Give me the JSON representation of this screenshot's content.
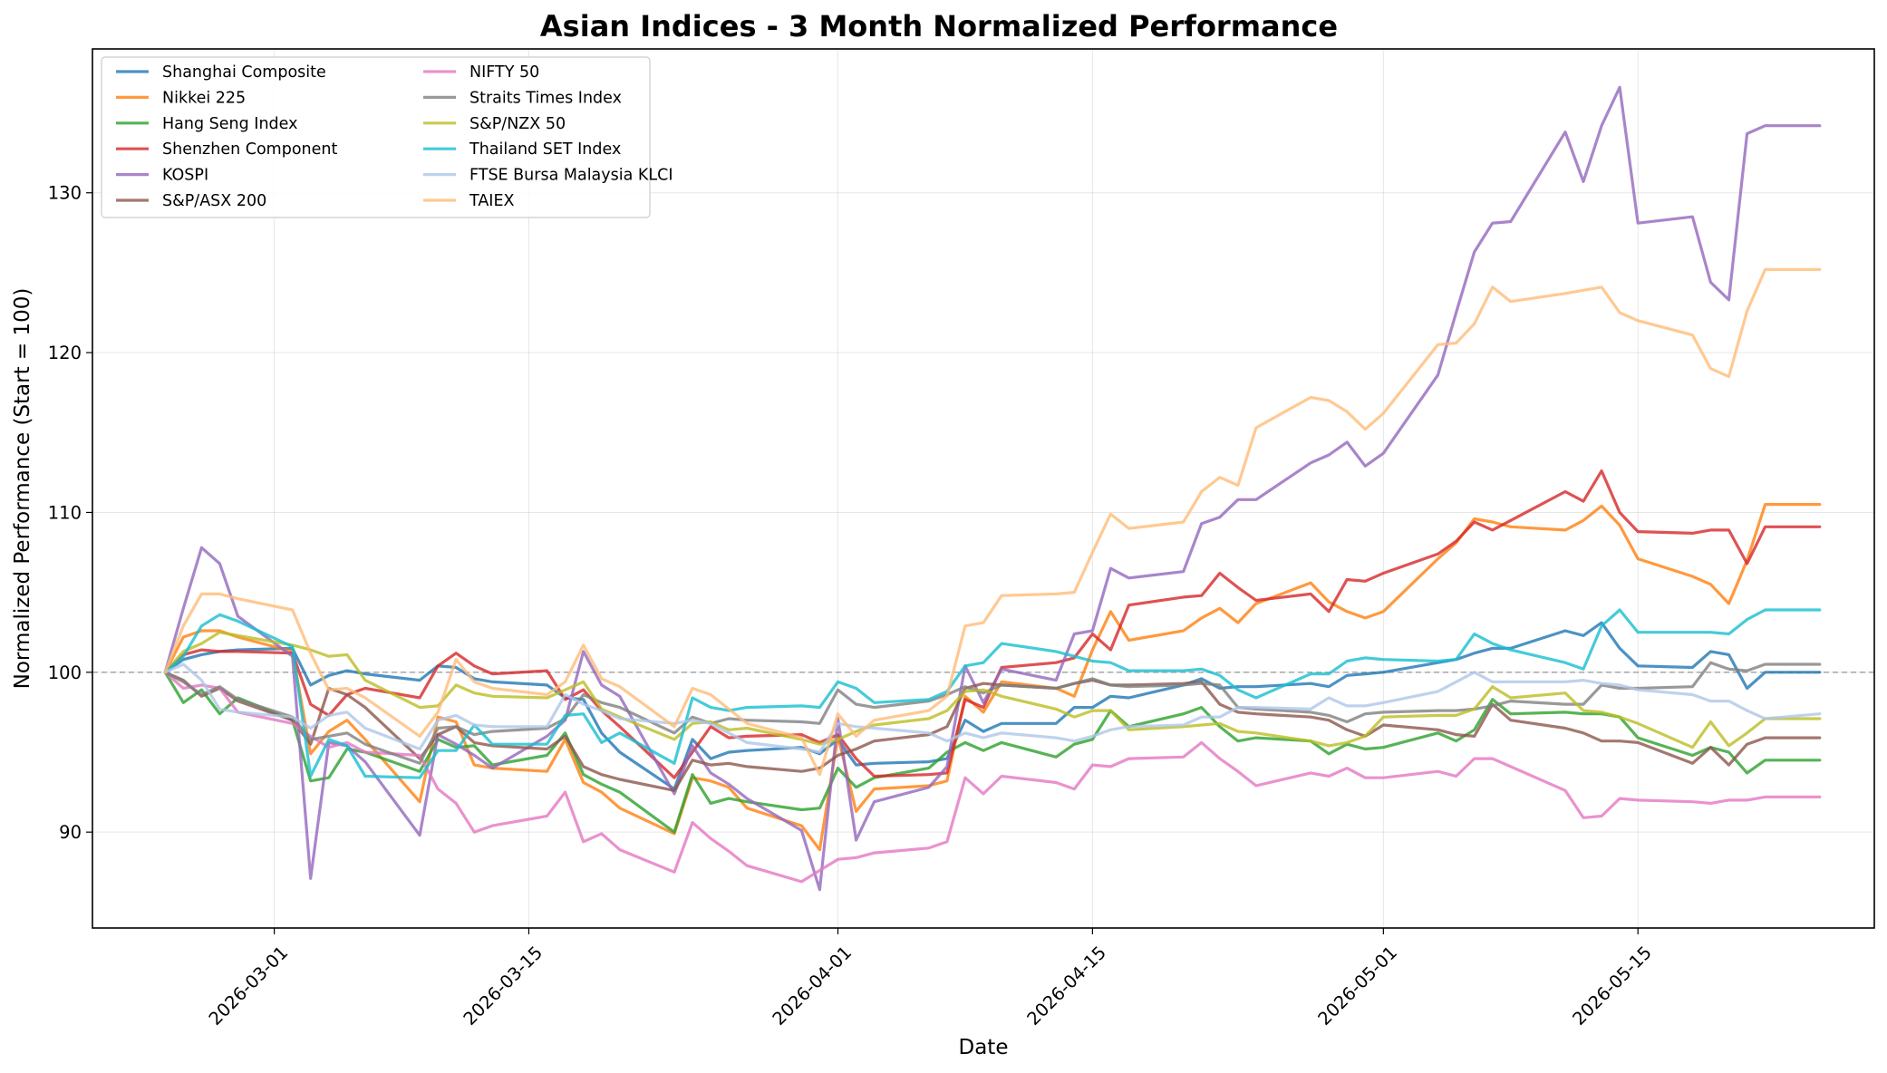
{
  "chart_data": {
    "type": "line",
    "title": "Asian Indices - 3 Month Normalized Performance",
    "xlabel": "Date",
    "ylabel": "Normalized Performance (Start = 100)",
    "xlim": [
      "2026-02-19",
      "2026-05-28"
    ],
    "ylim": [
      84,
      139
    ],
    "xticks": [
      "2026-03-01",
      "2026-03-15",
      "2026-04-01",
      "2026-04-15",
      "2026-05-01",
      "2026-05-15"
    ],
    "yticks": [
      90,
      100,
      110,
      120,
      130
    ],
    "baseline": 100,
    "grid": true,
    "legend_position": "upper-left",
    "x": [
      "2026-02-23",
      "2026-02-24",
      "2026-02-25",
      "2026-02-26",
      "2026-02-27",
      "2026-03-02",
      "2026-03-03",
      "2026-03-04",
      "2026-03-05",
      "2026-03-06",
      "2026-03-09",
      "2026-03-10",
      "2026-03-11",
      "2026-03-12",
      "2026-03-13",
      "2026-03-16",
      "2026-03-17",
      "2026-03-18",
      "2026-03-19",
      "2026-03-20",
      "2026-03-23",
      "2026-03-24",
      "2026-03-25",
      "2026-03-26",
      "2026-03-27",
      "2026-03-30",
      "2026-03-31",
      "2026-04-01",
      "2026-04-02",
      "2026-04-03",
      "2026-04-06",
      "2026-04-07",
      "2026-04-08",
      "2026-04-09",
      "2026-04-10",
      "2026-04-13",
      "2026-04-14",
      "2026-04-15",
      "2026-04-16",
      "2026-04-17",
      "2026-04-20",
      "2026-04-21",
      "2026-04-22",
      "2026-04-23",
      "2026-04-24",
      "2026-04-27",
      "2026-04-28",
      "2026-04-29",
      "2026-04-30",
      "2026-05-01",
      "2026-05-04",
      "2026-05-05",
      "2026-05-06",
      "2026-05-07",
      "2026-05-08",
      "2026-05-11",
      "2026-05-12",
      "2026-05-13",
      "2026-05-14",
      "2026-05-15",
      "2026-05-18",
      "2026-05-19",
      "2026-05-20",
      "2026-05-21",
      "2026-05-22",
      "2026-05-25"
    ],
    "series": [
      {
        "name": "Shanghai Composite",
        "color": "#1f77b4",
        "values": [
          100,
          100.8,
          101.1,
          101.3,
          101.4,
          101.5,
          99.2,
          99.8,
          100.1,
          99.9,
          99.5,
          100.4,
          100.3,
          99.6,
          99.4,
          99.2,
          98.4,
          98.3,
          96.2,
          95.0,
          92.7,
          95.8,
          94.6,
          95.0,
          95.1,
          95.3,
          94.9,
          95.8,
          94.2,
          94.3,
          94.4,
          94.6,
          97.0,
          96.3,
          96.8,
          96.8,
          97.8,
          97.8,
          98.5,
          98.4,
          99.2,
          99.6,
          99.0,
          99.1,
          99.1,
          99.3,
          99.1,
          99.8,
          99.9,
          100.0,
          100.6,
          100.8,
          101.2,
          101.5,
          101.5,
          102.6,
          102.3,
          103.1,
          101.5,
          100.4,
          100.3,
          101.3,
          101.1,
          99.0,
          100.0,
          100.0
        ]
      },
      {
        "name": "Nikkei 225",
        "color": "#ff7f0e",
        "values": [
          100,
          102.2,
          102.6,
          102.6,
          102.2,
          101.3,
          94.9,
          96.3,
          97.0,
          95.8,
          91.9,
          97.2,
          96.9,
          94.2,
          94.0,
          93.8,
          95.8,
          93.1,
          92.5,
          91.5,
          89.9,
          93.4,
          93.2,
          92.8,
          91.5,
          90.4,
          88.9,
          96.0,
          91.3,
          92.7,
          92.9,
          93.2,
          98.5,
          97.5,
          99.4,
          99.0,
          98.5,
          101.4,
          103.8,
          102.0,
          102.6,
          103.4,
          104.0,
          103.1,
          104.3,
          105.6,
          104.4,
          103.8,
          103.4,
          103.8,
          107.1,
          108.1,
          109.6,
          109.4,
          109.1,
          108.9,
          109.5,
          110.4,
          109.2,
          107.1,
          106.0,
          105.5,
          104.3,
          107.0,
          110.5,
          110.5
        ]
      },
      {
        "name": "Hang Seng Index",
        "color": "#2ca02c",
        "values": [
          100,
          98.1,
          98.9,
          97.4,
          98.4,
          97.0,
          93.2,
          93.4,
          95.2,
          95.0,
          93.8,
          95.8,
          95.3,
          95.4,
          94.2,
          94.8,
          96.2,
          93.6,
          93.0,
          92.5,
          90.0,
          93.6,
          91.8,
          92.1,
          91.9,
          91.4,
          91.5,
          94.0,
          92.8,
          93.4,
          94.0,
          95.0,
          95.6,
          95.1,
          95.6,
          94.7,
          95.5,
          95.8,
          97.6,
          96.6,
          97.4,
          97.8,
          96.6,
          95.7,
          95.9,
          95.7,
          94.9,
          95.5,
          95.2,
          95.3,
          96.2,
          95.7,
          96.4,
          98.3,
          97.4,
          97.5,
          97.4,
          97.4,
          97.2,
          95.9,
          94.8,
          95.3,
          95.0,
          93.7,
          94.5,
          94.5
        ]
      },
      {
        "name": "Shenzhen Component",
        "color": "#d62728",
        "values": [
          100,
          101.1,
          101.4,
          101.3,
          101.3,
          101.2,
          98.0,
          97.3,
          98.6,
          99.0,
          98.4,
          100.4,
          101.2,
          100.4,
          99.9,
          100.1,
          98.3,
          98.9,
          97.6,
          96.6,
          93.4,
          95.0,
          96.6,
          95.9,
          96.0,
          96.1,
          95.6,
          96.1,
          94.6,
          93.5,
          93.6,
          93.7,
          98.3,
          97.8,
          100.3,
          100.6,
          100.9,
          102.4,
          101.4,
          104.2,
          104.7,
          104.8,
          106.2,
          105.3,
          104.5,
          104.9,
          103.8,
          105.8,
          105.7,
          106.2,
          107.4,
          108.2,
          109.4,
          108.9,
          109.5,
          111.3,
          110.7,
          112.6,
          110.0,
          108.8,
          108.7,
          108.9,
          108.9,
          106.8,
          109.1,
          109.1
        ]
      },
      {
        "name": "KOSPI",
        "color": "#9467bd",
        "values": [
          100,
          104.0,
          107.8,
          106.8,
          103.5,
          101.0,
          87.1,
          95.6,
          95.4,
          94.4,
          89.8,
          96.1,
          95.5,
          94.8,
          94.0,
          96.0,
          97.0,
          101.3,
          99.2,
          98.5,
          92.4,
          95.4,
          93.7,
          93.0,
          92.1,
          90.1,
          86.4,
          97.1,
          89.5,
          91.9,
          92.8,
          94.1,
          100.4,
          98.1,
          100.2,
          99.5,
          102.4,
          102.6,
          106.5,
          105.9,
          106.3,
          109.3,
          109.7,
          110.8,
          110.8,
          113.1,
          113.6,
          114.4,
          112.9,
          113.7,
          118.6,
          122.5,
          126.3,
          128.1,
          128.2,
          133.8,
          130.7,
          134.2,
          136.6,
          128.1,
          128.5,
          124.4,
          123.3,
          133.7,
          134.2,
          134.2
        ]
      },
      {
        "name": "S&P/ASX 200",
        "color": "#8c564b",
        "values": [
          100,
          99.5,
          98.5,
          99.0,
          98.2,
          97.0,
          95.5,
          99.0,
          98.6,
          97.8,
          94.6,
          96.1,
          96.6,
          95.6,
          95.4,
          95.2,
          96.0,
          94.1,
          93.6,
          93.3,
          92.6,
          94.5,
          94.2,
          94.3,
          94.1,
          93.8,
          94.0,
          94.8,
          95.2,
          95.7,
          96.1,
          96.6,
          99.0,
          99.3,
          99.2,
          99.0,
          99.3,
          99.5,
          99.2,
          99.2,
          99.3,
          99.4,
          98.0,
          97.5,
          97.4,
          97.2,
          97.0,
          96.4,
          96.0,
          96.7,
          96.4,
          96.1,
          96.0,
          98.0,
          97.0,
          96.5,
          96.2,
          95.7,
          95.7,
          95.6,
          94.3,
          95.3,
          94.2,
          95.5,
          95.9,
          95.9
        ]
      },
      {
        "name": "NIFTY 50",
        "color": "#e377c2",
        "values": [
          100,
          99.0,
          99.2,
          99.0,
          97.5,
          96.8,
          96.0,
          95.3,
          95.6,
          95.0,
          94.8,
          92.7,
          91.8,
          90.0,
          90.4,
          91.0,
          92.5,
          89.4,
          89.9,
          88.9,
          87.5,
          90.6,
          89.6,
          88.8,
          87.9,
          86.9,
          87.6,
          88.3,
          88.4,
          88.7,
          89.0,
          89.4,
          93.4,
          92.4,
          93.5,
          93.1,
          92.7,
          94.2,
          94.1,
          94.6,
          94.7,
          95.6,
          94.6,
          93.8,
          92.9,
          93.7,
          93.5,
          94.0,
          93.4,
          93.4,
          93.8,
          93.5,
          94.6,
          94.6,
          94.1,
          92.6,
          90.9,
          91.0,
          92.1,
          92.0,
          91.9,
          91.8,
          92.0,
          92.0,
          92.2,
          92.2
        ]
      },
      {
        "name": "Straits Times Index",
        "color": "#7f7f7f",
        "values": [
          100,
          99.4,
          98.6,
          99.1,
          98.3,
          97.2,
          95.8,
          96.0,
          96.2,
          95.5,
          94.3,
          96.5,
          96.6,
          96.1,
          96.3,
          96.5,
          97.1,
          98.6,
          98.1,
          97.8,
          96.2,
          97.2,
          96.8,
          97.1,
          97.0,
          96.9,
          96.8,
          98.9,
          98.0,
          97.8,
          98.2,
          98.6,
          99.1,
          98.7,
          99.2,
          99.0,
          99.3,
          99.6,
          99.2,
          99.1,
          99.2,
          99.3,
          99.2,
          97.8,
          97.7,
          97.5,
          97.3,
          96.9,
          97.4,
          97.5,
          97.6,
          97.6,
          97.7,
          97.9,
          98.2,
          98.0,
          98.0,
          99.2,
          99.0,
          99.0,
          99.1,
          100.6,
          100.2,
          100.1,
          100.5,
          100.5
        ]
      },
      {
        "name": "S&P/NZX 50",
        "color": "#bcbd22",
        "values": [
          100,
          101.3,
          101.8,
          102.5,
          102.3,
          101.7,
          101.4,
          101.0,
          101.1,
          99.5,
          97.8,
          97.9,
          99.2,
          98.7,
          98.5,
          98.4,
          98.9,
          99.4,
          97.7,
          97.2,
          95.8,
          96.8,
          96.9,
          96.4,
          96.5,
          95.8,
          95.5,
          95.8,
          96.3,
          96.7,
          97.1,
          97.6,
          98.8,
          98.9,
          98.5,
          97.7,
          97.2,
          97.6,
          97.6,
          96.4,
          96.6,
          96.7,
          96.8,
          96.3,
          96.2,
          95.7,
          95.4,
          95.6,
          96.0,
          97.2,
          97.3,
          97.3,
          97.7,
          99.1,
          98.4,
          98.7,
          97.6,
          97.5,
          97.2,
          96.8,
          95.3,
          96.9,
          95.4,
          96.2,
          97.1,
          97.1
        ]
      },
      {
        "name": "Thailand SET Index",
        "color": "#17becf",
        "values": [
          100,
          101.0,
          102.9,
          103.6,
          103.2,
          101.6,
          93.5,
          95.8,
          95.4,
          93.5,
          93.4,
          95.1,
          95.1,
          96.7,
          95.5,
          95.5,
          97.3,
          97.4,
          95.6,
          96.2,
          94.3,
          98.4,
          97.8,
          97.6,
          97.8,
          97.9,
          97.8,
          99.4,
          99.0,
          98.1,
          98.3,
          98.8,
          100.4,
          100.6,
          101.8,
          101.3,
          101.0,
          100.7,
          100.6,
          100.1,
          100.1,
          100.2,
          99.8,
          98.9,
          98.4,
          99.9,
          99.9,
          100.7,
          100.9,
          100.8,
          100.7,
          100.8,
          102.4,
          101.8,
          101.4,
          100.6,
          100.2,
          102.9,
          103.9,
          102.5,
          102.5,
          102.5,
          102.4,
          103.3,
          103.9,
          103.9
        ]
      },
      {
        "name": "FTSE Bursa Malaysia KLCI",
        "color": "#aec7e8",
        "values": [
          100,
          100.5,
          99.5,
          97.7,
          97.5,
          97.2,
          96.5,
          97.3,
          97.5,
          96.5,
          95.2,
          97.0,
          97.3,
          96.7,
          96.6,
          96.6,
          98.6,
          98.0,
          97.6,
          97.1,
          96.8,
          97.0,
          96.8,
          96.2,
          95.6,
          95.2,
          95.0,
          96.8,
          96.6,
          96.5,
          96.2,
          95.7,
          96.2,
          95.9,
          96.2,
          95.9,
          95.7,
          96.0,
          96.4,
          96.6,
          96.7,
          97.2,
          97.2,
          97.8,
          97.8,
          97.7,
          98.4,
          97.9,
          97.9,
          98.1,
          98.8,
          99.4,
          100.0,
          99.4,
          99.4,
          99.4,
          99.5,
          99.3,
          99.2,
          98.9,
          98.6,
          98.2,
          98.2,
          97.6,
          97.1,
          97.4
        ]
      },
      {
        "name": "TAIEX",
        "color": "#ffbb78",
        "values": [
          100,
          102.9,
          104.9,
          104.9,
          104.6,
          103.9,
          101.2,
          98.9,
          99.0,
          98.4,
          96.0,
          97.5,
          100.8,
          99.4,
          99.0,
          98.6,
          99.4,
          101.7,
          99.6,
          99.1,
          96.6,
          99.0,
          98.6,
          97.7,
          96.8,
          95.9,
          93.6,
          97.4,
          96.0,
          97.0,
          97.6,
          98.5,
          102.9,
          103.1,
          104.8,
          104.9,
          105.0,
          107.5,
          109.9,
          109.0,
          109.4,
          111.3,
          112.2,
          111.7,
          115.3,
          117.2,
          117.0,
          116.3,
          115.2,
          116.2,
          120.5,
          120.6,
          121.8,
          124.1,
          123.2,
          123.7,
          123.9,
          124.1,
          122.5,
          122.0,
          121.1,
          119.0,
          118.5,
          122.6,
          125.2,
          125.2
        ]
      }
    ]
  }
}
